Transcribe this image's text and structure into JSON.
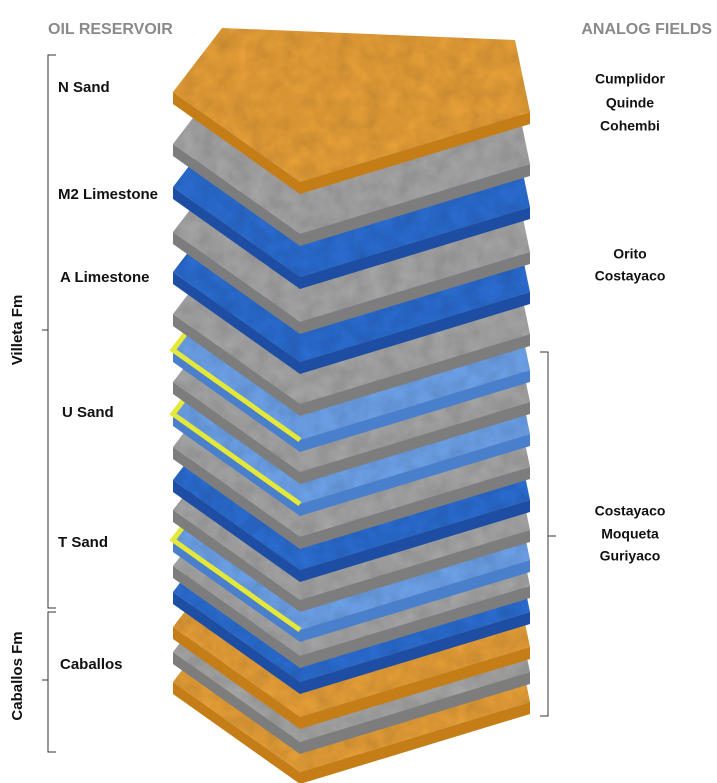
{
  "header": {
    "left_title": "OIL RESERVOIR",
    "right_title": "ANALOG FIELDS"
  },
  "layers": [
    "N Sand",
    "M2 Limestone",
    "A Limestone",
    "U Sand",
    "T Sand",
    "Caballos"
  ],
  "formations": [
    "Villeta Fm",
    "Caballos Fm"
  ],
  "analog_fields": [
    [
      "Cumplidor",
      "Quinde",
      "Cohembi"
    ],
    [
      "Orito",
      "Costayaco"
    ],
    [
      "Costayaco",
      "Moqueta",
      "Guriyaco"
    ]
  ]
}
